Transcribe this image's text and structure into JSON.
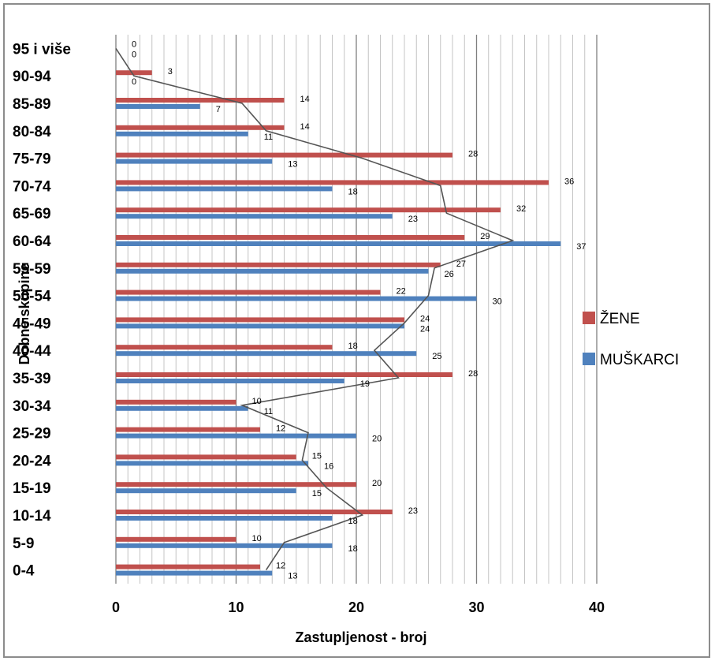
{
  "chart_data": {
    "type": "bar",
    "orientation": "horizontal",
    "xlabel": "Zastupljenost - broj",
    "ylabel": "Dobne skupine",
    "xlim": [
      0,
      40
    ],
    "xticks": [
      "0",
      "10",
      "20",
      "30",
      "40"
    ],
    "grid": true,
    "legend_position": "right",
    "categories": [
      "95 i više",
      "90-94",
      "85-89",
      "80-84",
      "75-79",
      "70-74",
      "65-69",
      "60-64",
      "55-59",
      "50-54",
      "45-49",
      "40-44",
      "35-39",
      "30-34",
      "25-29",
      "20-24",
      "15-19",
      "10-14",
      "5-9",
      "0-4"
    ],
    "series": [
      {
        "name": "ŽENE",
        "color": "#c0504d",
        "values": [
          0,
          3,
          14,
          14,
          28,
          36,
          32,
          29,
          27,
          22,
          24,
          18,
          28,
          10,
          12,
          15,
          20,
          23,
          10,
          12
        ]
      },
      {
        "name": "MUŠKARCI",
        "color": "#4f81bd",
        "values": [
          0,
          0,
          7,
          11,
          13,
          18,
          23,
          37,
          26,
          30,
          24,
          25,
          19,
          11,
          20,
          16,
          15,
          18,
          18,
          13
        ]
      }
    ],
    "line": {
      "color": "#555555"
    }
  }
}
